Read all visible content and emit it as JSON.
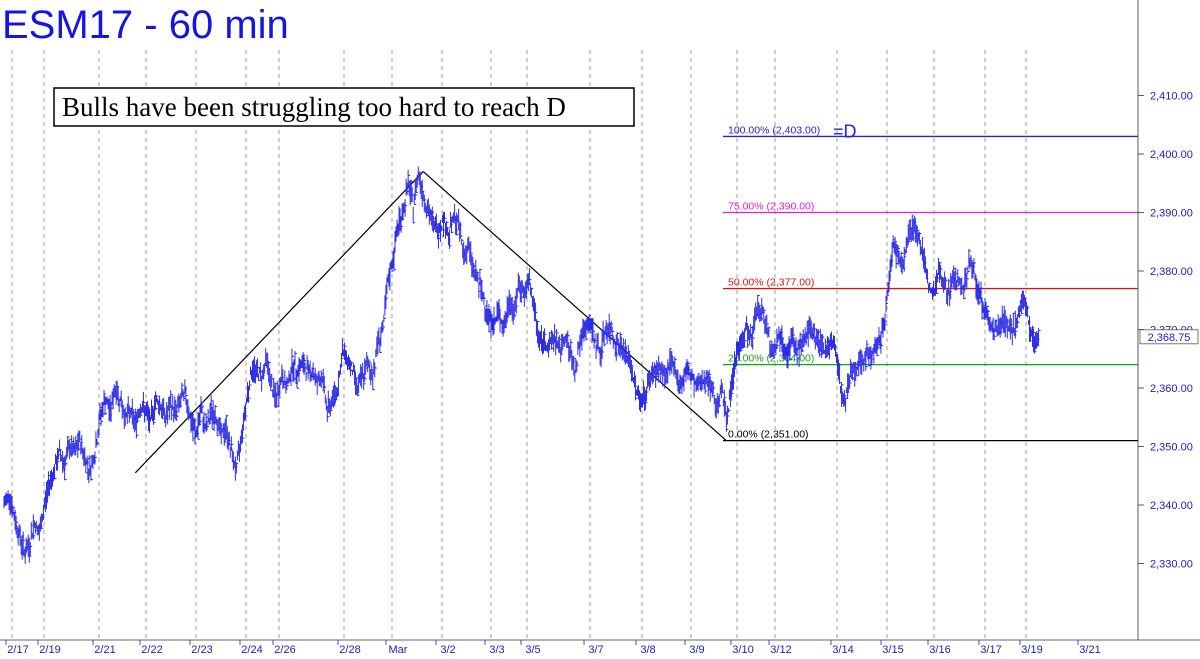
{
  "title": "ESM17 - 60 min",
  "chart_data": {
    "type": "line",
    "title": "ESM17 - 60 min",
    "annotation": "Bulls have been struggling too hard to reach D",
    "ylim": [
      2320,
      2420
    ],
    "y_ticks": [
      2330,
      2340,
      2350,
      2360,
      2370,
      2380,
      2390,
      2400,
      2410
    ],
    "y_tick_labels": [
      "2,330.00",
      "2,340.00",
      "2,350.00",
      "2,360.00",
      "2,370.00",
      "2,380.00",
      "2,390.00",
      "2,400.00",
      "2,410.00"
    ],
    "last_price": 2368.75,
    "last_price_label": "2,368.75",
    "x_labels": [
      "2/17",
      "2/19",
      "2/21",
      "2/22",
      "2/23",
      "2/24",
      "2/26",
      "2/28",
      "Mar",
      "3/2",
      "3/3",
      "3/5",
      "3/7",
      "3/8",
      "3/9",
      "3/10",
      "3/12",
      "3/14",
      "3/15",
      "3/16",
      "3/17",
      "3/19",
      "3/21"
    ],
    "fib_levels": [
      {
        "label": "100.00% (2,403.00)",
        "value": 2403,
        "color": "#2424d8",
        "suffix": "=D"
      },
      {
        "label": "75.00% (2,390.00)",
        "value": 2390,
        "color": "#e020e0",
        "suffix": ""
      },
      {
        "label": "50.00% (2,377.00)",
        "value": 2377,
        "color": "#d01818",
        "suffix": ""
      },
      {
        "label": "25.00% (2,364.00)",
        "value": 2364,
        "color": "#18a018",
        "suffix": ""
      },
      {
        "label": "0.00% (2,351.00)",
        "value": 2351,
        "color": "#000000",
        "suffix": ""
      }
    ],
    "abcd_pattern": [
      {
        "x": 2.6,
        "y": 2345.5
      },
      {
        "x": 8.3,
        "y": 2397
      },
      {
        "x": 14.3,
        "y": 2351
      }
    ],
    "price_path": [
      [
        0,
        2340
      ],
      [
        0.1,
        2342
      ],
      [
        0.2,
        2338
      ],
      [
        0.3,
        2335
      ],
      [
        0.4,
        2332
      ],
      [
        0.5,
        2333
      ],
      [
        0.6,
        2337
      ],
      [
        0.7,
        2335
      ],
      [
        0.8,
        2340
      ],
      [
        0.9,
        2344
      ],
      [
        1.0,
        2346
      ],
      [
        1.1,
        2349
      ],
      [
        1.2,
        2347
      ],
      [
        1.3,
        2350
      ],
      [
        1.4,
        2349
      ],
      [
        1.5,
        2351
      ],
      [
        1.6,
        2348
      ],
      [
        1.7,
        2346
      ],
      [
        1.8,
        2349
      ],
      [
        1.9,
        2355
      ],
      [
        2.0,
        2358
      ],
      [
        2.1,
        2356
      ],
      [
        2.2,
        2360
      ],
      [
        2.3,
        2358
      ],
      [
        2.4,
        2355
      ],
      [
        2.5,
        2356
      ],
      [
        2.6,
        2354
      ],
      [
        2.7,
        2357
      ],
      [
        2.8,
        2356
      ],
      [
        2.9,
        2354
      ],
      [
        3.0,
        2358
      ],
      [
        3.1,
        2357
      ],
      [
        3.2,
        2355
      ],
      [
        3.3,
        2357
      ],
      [
        3.4,
        2356
      ],
      [
        3.5,
        2358
      ],
      [
        3.6,
        2359
      ],
      [
        3.7,
        2354
      ],
      [
        3.8,
        2352
      ],
      [
        3.9,
        2356
      ],
      [
        4.0,
        2353
      ],
      [
        4.1,
        2356
      ],
      [
        4.2,
        2355
      ],
      [
        4.3,
        2352
      ],
      [
        4.4,
        2353
      ],
      [
        4.5,
        2349
      ],
      [
        4.6,
        2346
      ],
      [
        4.7,
        2352
      ],
      [
        4.8,
        2358
      ],
      [
        4.9,
        2363
      ],
      [
        5.0,
        2363
      ],
      [
        5.1,
        2362
      ],
      [
        5.2,
        2365
      ],
      [
        5.3,
        2360
      ],
      [
        5.4,
        2358
      ],
      [
        5.5,
        2362
      ],
      [
        5.6,
        2360
      ],
      [
        5.7,
        2364
      ],
      [
        5.8,
        2363
      ],
      [
        5.9,
        2364
      ],
      [
        6.0,
        2363
      ],
      [
        6.1,
        2363
      ],
      [
        6.2,
        2361
      ],
      [
        6.3,
        2362
      ],
      [
        6.4,
        2356
      ],
      [
        6.5,
        2358
      ],
      [
        6.6,
        2360
      ],
      [
        6.7,
        2366
      ],
      [
        6.8,
        2365
      ],
      [
        6.9,
        2363
      ],
      [
        7.0,
        2360
      ],
      [
        7.1,
        2362
      ],
      [
        7.2,
        2364
      ],
      [
        7.3,
        2362
      ],
      [
        7.4,
        2368
      ],
      [
        7.5,
        2370
      ],
      [
        7.6,
        2378
      ],
      [
        7.7,
        2382
      ],
      [
        7.8,
        2388
      ],
      [
        7.9,
        2390
      ],
      [
        8.0,
        2395
      ],
      [
        8.1,
        2391
      ],
      [
        8.2,
        2397
      ],
      [
        8.3,
        2393
      ],
      [
        8.4,
        2390
      ],
      [
        8.5,
        2388
      ],
      [
        8.6,
        2387
      ],
      [
        8.7,
        2389
      ],
      [
        8.8,
        2386
      ],
      [
        8.9,
        2389
      ],
      [
        9.0,
        2388
      ],
      [
        9.1,
        2383
      ],
      [
        9.2,
        2384
      ],
      [
        9.3,
        2380
      ],
      [
        9.4,
        2378
      ],
      [
        9.5,
        2375
      ],
      [
        9.6,
        2372
      ],
      [
        9.7,
        2371
      ],
      [
        9.8,
        2373
      ],
      [
        9.9,
        2370
      ],
      [
        10.0,
        2375
      ],
      [
        10.1,
        2373
      ],
      [
        10.2,
        2378
      ],
      [
        10.3,
        2376
      ],
      [
        10.4,
        2378
      ],
      [
        10.5,
        2373
      ],
      [
        10.6,
        2368
      ],
      [
        10.7,
        2368
      ],
      [
        10.8,
        2367
      ],
      [
        10.9,
        2369
      ],
      [
        11.0,
        2366
      ],
      [
        11.1,
        2369
      ],
      [
        11.2,
        2366
      ],
      [
        11.3,
        2363
      ],
      [
        11.4,
        2368
      ],
      [
        11.5,
        2370
      ],
      [
        11.6,
        2371
      ],
      [
        11.7,
        2368
      ],
      [
        11.8,
        2366
      ],
      [
        11.9,
        2370
      ],
      [
        12.0,
        2370
      ],
      [
        12.1,
        2368
      ],
      [
        12.2,
        2367
      ],
      [
        12.3,
        2366
      ],
      [
        12.4,
        2364
      ],
      [
        12.5,
        2360
      ],
      [
        12.6,
        2358
      ],
      [
        12.7,
        2359
      ],
      [
        12.8,
        2362
      ],
      [
        12.9,
        2363
      ],
      [
        13.0,
        2363
      ],
      [
        13.1,
        2362
      ],
      [
        13.2,
        2364
      ],
      [
        13.3,
        2363
      ],
      [
        13.4,
        2360
      ],
      [
        13.5,
        2363
      ],
      [
        13.6,
        2362
      ],
      [
        13.7,
        2360
      ],
      [
        13.8,
        2361
      ],
      [
        13.9,
        2362
      ],
      [
        14.0,
        2360
      ],
      [
        14.1,
        2357
      ],
      [
        14.2,
        2360
      ],
      [
        14.3,
        2355
      ],
      [
        14.4,
        2360
      ],
      [
        14.5,
        2366
      ],
      [
        14.6,
        2368
      ],
      [
        14.7,
        2370
      ],
      [
        14.8,
        2368
      ],
      [
        14.9,
        2374
      ],
      [
        15.0,
        2373
      ],
      [
        15.1,
        2371
      ],
      [
        15.2,
        2366
      ],
      [
        15.3,
        2368
      ],
      [
        15.4,
        2369
      ],
      [
        15.5,
        2366
      ],
      [
        15.6,
        2368
      ],
      [
        15.7,
        2366
      ],
      [
        15.8,
        2368
      ],
      [
        15.9,
        2369
      ],
      [
        16.0,
        2370
      ],
      [
        16.1,
        2368
      ],
      [
        16.2,
        2367
      ],
      [
        16.3,
        2367
      ],
      [
        16.4,
        2368
      ],
      [
        16.5,
        2365
      ],
      [
        16.6,
        2357
      ],
      [
        16.7,
        2360
      ],
      [
        16.8,
        2363
      ],
      [
        16.9,
        2363
      ],
      [
        17.0,
        2365
      ],
      [
        17.1,
        2366
      ],
      [
        17.2,
        2366
      ],
      [
        17.3,
        2367
      ],
      [
        17.4,
        2370
      ],
      [
        17.5,
        2377
      ],
      [
        17.6,
        2385
      ],
      [
        17.7,
        2382
      ],
      [
        17.8,
        2382
      ],
      [
        17.9,
        2386
      ],
      [
        18.0,
        2388
      ],
      [
        18.1,
        2386
      ],
      [
        18.2,
        2382
      ],
      [
        18.3,
        2378
      ],
      [
        18.4,
        2376
      ],
      [
        18.5,
        2380
      ],
      [
        18.6,
        2378
      ],
      [
        18.7,
        2376
      ],
      [
        18.8,
        2379
      ],
      [
        18.9,
        2378
      ],
      [
        19.0,
        2377
      ],
      [
        19.1,
        2381
      ],
      [
        19.2,
        2380
      ],
      [
        19.3,
        2376
      ],
      [
        19.4,
        2374
      ],
      [
        19.5,
        2371
      ],
      [
        19.6,
        2370
      ],
      [
        19.7,
        2371
      ],
      [
        19.8,
        2372
      ],
      [
        19.9,
        2370
      ],
      [
        20.0,
        2370
      ],
      [
        20.1,
        2373
      ],
      [
        20.2,
        2375
      ],
      [
        20.3,
        2370
      ],
      [
        20.4,
        2368
      ],
      [
        20.5,
        2368.75
      ]
    ]
  }
}
